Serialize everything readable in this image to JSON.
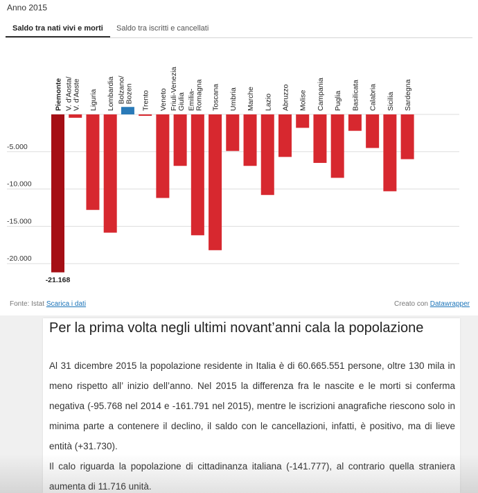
{
  "header": {
    "year": "Anno 2015"
  },
  "tabs": [
    {
      "label": "Saldo tra nati vivi e morti",
      "active": true
    },
    {
      "label": "Saldo tra iscritti e cancellati",
      "active": false
    }
  ],
  "chart_data": {
    "type": "bar",
    "categories": [
      "Piemonte",
      "V. d'Aosta/ V. d'Aoste",
      "Liguria",
      "Lombardia",
      "Bolzano/ Bozen",
      "Trento",
      "Veneto",
      "Friuli-Venezia Giulia",
      "Emilia- Romagna",
      "Toscana",
      "Umbria",
      "Marche",
      "Lazio",
      "Abruzzo",
      "Molise",
      "Campania",
      "Puglia",
      "Basilicata",
      "Calabria",
      "Sicilia",
      "Sardegna"
    ],
    "values": [
      -21168,
      -450,
      -12800,
      -15850,
      1000,
      -180,
      -11200,
      -6900,
      -16200,
      -18200,
      -4900,
      -6900,
      -10800,
      -5700,
      -1800,
      -6500,
      -8500,
      -2200,
      -4500,
      -10300,
      -6000
    ],
    "highlight_label": "-21.168",
    "yticks": [
      "-5.000",
      "-10.000",
      "-15.000",
      "-20.000"
    ],
    "ytick_values": [
      -5000,
      -10000,
      -15000,
      -20000
    ],
    "ylim": [
      -21800,
      5500
    ],
    "colors": {
      "negative": "#d7282f",
      "positive": "#2a7ab8",
      "highlight": "#a50f15"
    }
  },
  "footer": {
    "source_prefix": "Fonte: Istat",
    "source_link": "Scarica i dati",
    "credit_prefix": "Creato con",
    "credit_link": "Datawrapper"
  },
  "article": {
    "title": "Per la prima volta negli ultimi novant’anni cala la popolazione",
    "paragraphs": [
      "Al 31 dicembre 2015 la popolazione residente in Italia è di 60.665.551 persone, oltre 130 mila in meno rispetto all’ inizio dell’anno. Nel 2015 la differenza fra le nascite e le morti si conferma negativa (-95.768 nel 2014 e -161.791 nel 2015), mentre le iscrizioni anagrafiche riescono solo in minima parte a contenere il declino, il saldo con le cancellazioni, infatti, è positivo, ma di lieve entità (+31.730).",
      "Il calo riguarda la popolazione di cittadinanza italiana (-141.777), al contrario quella straniera aumenta di 11.716 unità."
    ]
  }
}
